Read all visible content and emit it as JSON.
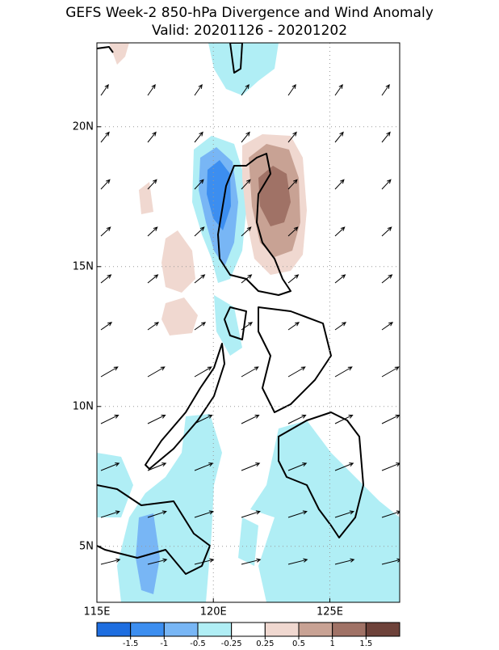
{
  "header": {
    "title": "GEFS Week-2 850-hPa Divergence and Wind Anomaly",
    "subtitle": "Valid: 20201126 - 20201202"
  },
  "map": {
    "xlim": [
      115,
      128
    ],
    "ylim": [
      3,
      23
    ],
    "xticks": [
      {
        "value": 115,
        "label": "115E"
      },
      {
        "value": 120,
        "label": "120E"
      },
      {
        "value": 125,
        "label": "125E"
      }
    ],
    "yticks": [
      {
        "value": 5,
        "label": "5N"
      },
      {
        "value": 10,
        "label": "10N"
      },
      {
        "value": 15,
        "label": "15N"
      },
      {
        "value": 20,
        "label": "20N"
      }
    ],
    "grid": true
  },
  "colorbar": {
    "levels": [
      -1.5,
      -1,
      -0.5,
      -0.25,
      0.25,
      0.5,
      1,
      1.5
    ],
    "colors": [
      "#1e6ee0",
      "#3c8ef0",
      "#78b6f5",
      "#b0eef5",
      "#ffffff",
      "#f0d8d0",
      "#c8a294",
      "#a07266",
      "#6e423a"
    ]
  }
}
